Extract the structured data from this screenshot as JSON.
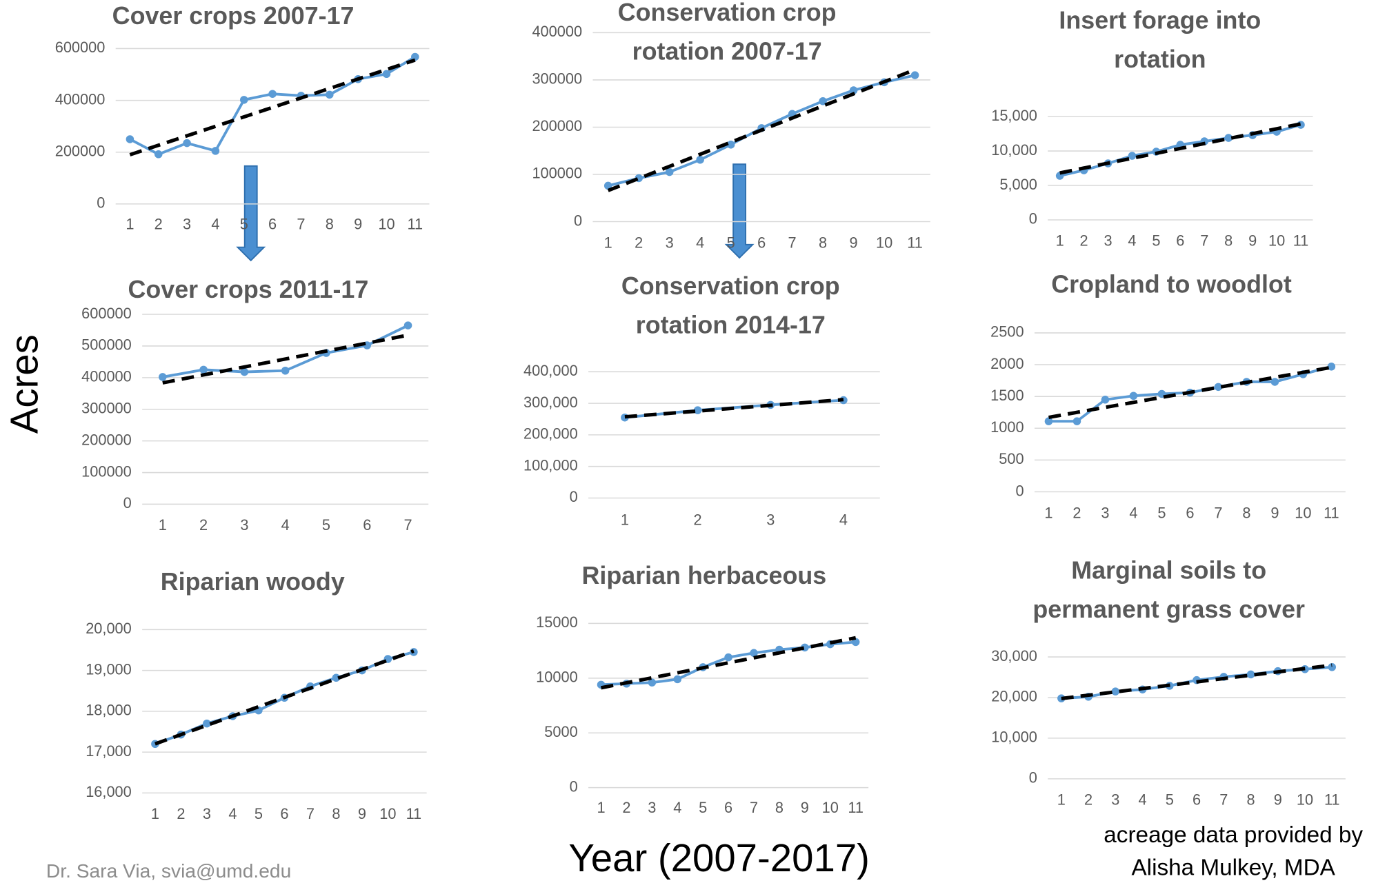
{
  "y_label": "Acres",
  "x_label": "Year (2007-2017)",
  "credit": "Dr. Sara Via, svia@umd.edu",
  "source": [
    "acreage data provided by",
    "Alisha Mulkey, MDA"
  ],
  "chart_data": [
    {
      "type": "line",
      "title": [
        "Cover crops 2007-17"
      ],
      "trendline": "linear",
      "color": "#5b9bd5",
      "categories": [
        1,
        2,
        3,
        4,
        5,
        6,
        7,
        8,
        9,
        10,
        11
      ],
      "values": [
        250000,
        192000,
        235000,
        205000,
        402000,
        425000,
        418000,
        422000,
        482000,
        502000,
        568000
      ],
      "ylim": [
        0,
        600000
      ],
      "yticks": [
        0,
        200000,
        400000,
        600000
      ],
      "grid": true
    },
    {
      "type": "line",
      "title": [
        "Conservation crop",
        "rotation 2007-17"
      ],
      "trendline": "linear",
      "color": "#5b9bd5",
      "categories": [
        1,
        2,
        3,
        4,
        5,
        6,
        7,
        8,
        9,
        10,
        11
      ],
      "values": [
        76000,
        92000,
        105000,
        131000,
        163000,
        198000,
        228000,
        255000,
        278000,
        295000,
        310000
      ],
      "ylim": [
        0,
        400000
      ],
      "yticks": [
        0,
        100000,
        200000,
        300000,
        400000
      ],
      "grid": true
    },
    {
      "type": "line",
      "title": [
        "Insert forage into",
        "rotation"
      ],
      "trendline": "linear",
      "color": "#5b9bd5",
      "categories": [
        1,
        2,
        3,
        4,
        5,
        6,
        7,
        8,
        9,
        10,
        11
      ],
      "values": [
        6400,
        7200,
        8200,
        9300,
        9900,
        10900,
        11400,
        11900,
        12300,
        12800,
        13800
      ],
      "ylim": [
        0,
        15000
      ],
      "yticks": [
        0,
        {
          "value": 5000,
          "label": "5,000"
        },
        {
          "value": 10000,
          "label": "10,000"
        },
        {
          "value": 15000,
          "label": "15,000"
        }
      ],
      "grid": true
    },
    {
      "type": "line",
      "title": [
        "Cover crops 2011-17"
      ],
      "trendline": "linear",
      "color": "#5b9bd5",
      "categories": [
        1,
        2,
        3,
        4,
        5,
        6,
        7
      ],
      "values": [
        402000,
        425000,
        418000,
        422000,
        478000,
        502000,
        565000
      ],
      "ylim": [
        0,
        600000
      ],
      "yticks": [
        0,
        100000,
        200000,
        300000,
        400000,
        500000,
        600000
      ],
      "grid": true
    },
    {
      "type": "line",
      "title": [
        "Conservation crop",
        "rotation 2014-17"
      ],
      "trendline": "linear",
      "color": "#5b9bd5",
      "categories": [
        1,
        2,
        3,
        4
      ],
      "values": [
        255000,
        278000,
        295000,
        310000
      ],
      "ylim": [
        0,
        400000
      ],
      "yticks": [
        0,
        {
          "value": 100000,
          "label": "100,000"
        },
        {
          "value": 200000,
          "label": "200,000"
        },
        {
          "value": 300000,
          "label": "300,000"
        },
        {
          "value": 400000,
          "label": "400,000"
        }
      ],
      "grid": true
    },
    {
      "type": "line",
      "title": [
        "Cropland to woodlot"
      ],
      "trendline": "linear",
      "color": "#5b9bd5",
      "categories": [
        1,
        2,
        3,
        4,
        5,
        6,
        7,
        8,
        9,
        10,
        11
      ],
      "values": [
        1110,
        1110,
        1450,
        1510,
        1540,
        1560,
        1650,
        1730,
        1730,
        1850,
        1970
      ],
      "ylim": [
        0,
        2500
      ],
      "yticks": [
        0,
        500,
        1000,
        1500,
        2000,
        2500
      ],
      "grid": true
    },
    {
      "type": "line",
      "title": [
        "Riparian woody"
      ],
      "trendline": "linear",
      "color": "#5b9bd5",
      "categories": [
        1,
        2,
        3,
        4,
        5,
        6,
        7,
        8,
        9,
        10,
        11
      ],
      "values": [
        17200,
        17430,
        17700,
        17880,
        18020,
        18330,
        18610,
        18820,
        19000,
        19280,
        19450
      ],
      "ylim": [
        16000,
        20000
      ],
      "yticks": [
        {
          "value": 16000,
          "label": "16,000"
        },
        {
          "value": 17000,
          "label": "17,000"
        },
        {
          "value": 18000,
          "label": "18,000"
        },
        {
          "value": 19000,
          "label": "19,000"
        },
        {
          "value": 20000,
          "label": "20,000"
        }
      ],
      "grid": true
    },
    {
      "type": "line",
      "title": [
        "Riparian herbaceous"
      ],
      "trendline": "linear",
      "color": "#5b9bd5",
      "categories": [
        1,
        2,
        3,
        4,
        5,
        6,
        7,
        8,
        9,
        10,
        11
      ],
      "values": [
        9400,
        9500,
        9600,
        9900,
        11000,
        11900,
        12300,
        12600,
        12800,
        13100,
        13300
      ],
      "ylim": [
        0,
        15000
      ],
      "yticks": [
        0,
        5000,
        10000,
        15000
      ],
      "grid": true
    },
    {
      "type": "line",
      "title": [
        "Marginal soils to",
        "permanent grass cover"
      ],
      "trendline": "linear",
      "color": "#5b9bd5",
      "categories": [
        1,
        2,
        3,
        4,
        5,
        6,
        7,
        8,
        9,
        10,
        11
      ],
      "values": [
        19800,
        20200,
        21500,
        22000,
        22900,
        24300,
        25100,
        25700,
        26500,
        27000,
        27500
      ],
      "ylim": [
        0,
        30000
      ],
      "yticks": [
        0,
        {
          "value": 10000,
          "label": "10,000"
        },
        {
          "value": 20000,
          "label": "20,000"
        },
        {
          "value": 30000,
          "label": "30,000"
        }
      ],
      "grid": true
    }
  ]
}
